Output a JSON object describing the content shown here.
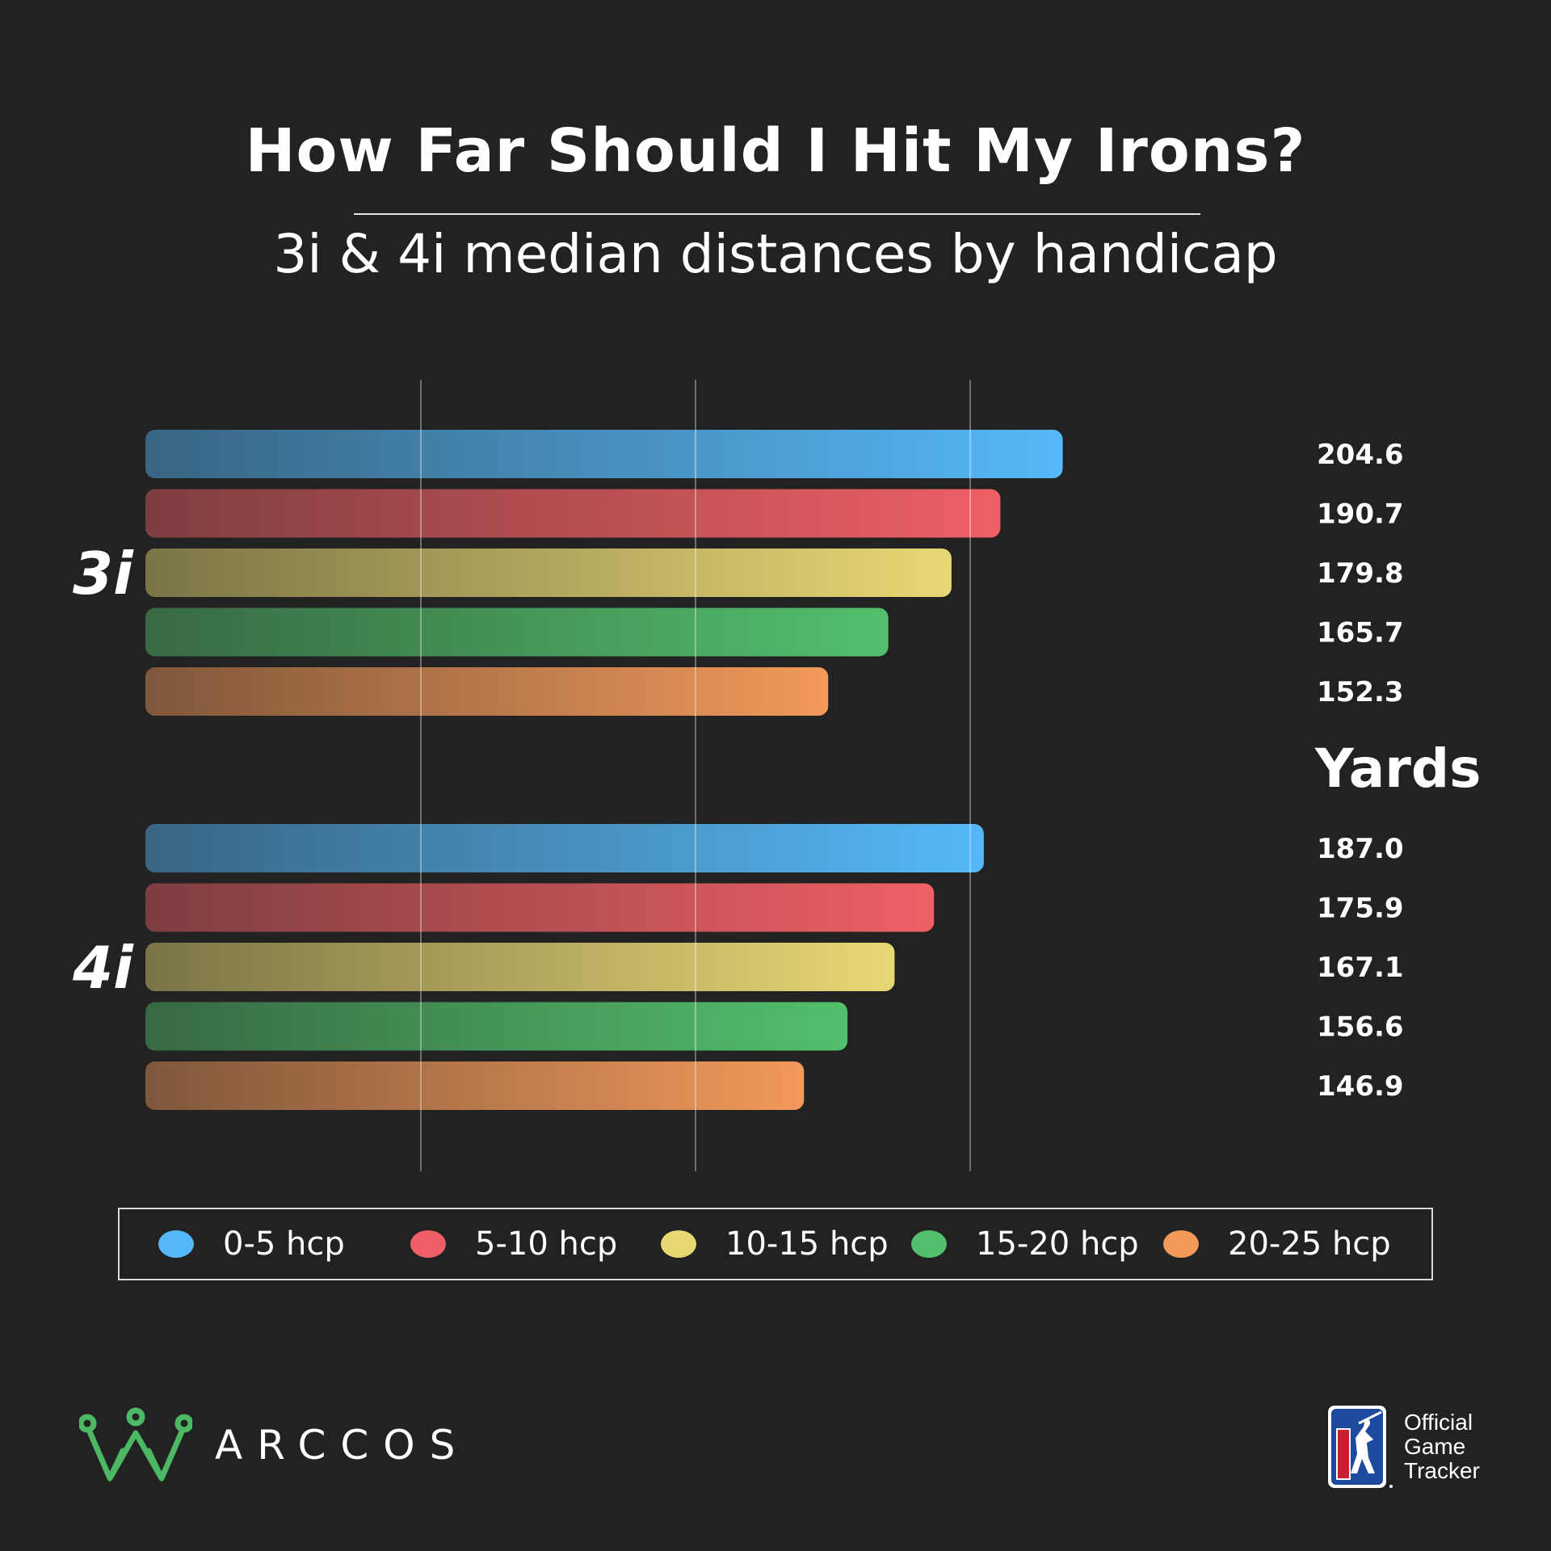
{
  "header": {
    "title": "How Far Should I Hit My Irons?",
    "subtitle": "3i & 4i median distances by handicap"
  },
  "chart_data": {
    "type": "bar",
    "orientation": "horizontal",
    "title": "How Far Should I Hit My Irons?",
    "subtitle": "3i & 4i median distances by handicap",
    "unit_label": "Yards",
    "groups": [
      "3i",
      "4i"
    ],
    "series": [
      {
        "name": "0-5 hcp",
        "color": "#55b8f8",
        "values": [
          204.6,
          187.0
        ]
      },
      {
        "name": "5-10 hcp",
        "color": "#ee6065",
        "values": [
          190.7,
          175.9
        ]
      },
      {
        "name": "10-15 hcp",
        "color": "#e8d874",
        "values": [
          179.8,
          167.1
        ]
      },
      {
        "name": "15-20 hcp",
        "color": "#52c06c",
        "values": [
          165.7,
          156.6
        ]
      },
      {
        "name": "20-25 hcp",
        "color": "#f2995a",
        "values": [
          152.3,
          146.9
        ]
      }
    ],
    "value_labels": [
      [
        "204.6",
        "190.7",
        "179.8",
        "165.7",
        "152.3"
      ],
      [
        "187.0",
        "175.9",
        "167.1",
        "156.6",
        "146.9"
      ]
    ],
    "grid": true,
    "legend_position": "bottom"
  },
  "legend": [
    {
      "label": "0-5 hcp",
      "color": "#55b8f8"
    },
    {
      "label": "5-10 hcp",
      "color": "#ee6065"
    },
    {
      "label": "10-15 hcp",
      "color": "#e8d874"
    },
    {
      "label": "15-20 hcp",
      "color": "#52c06c"
    },
    {
      "label": "20-25 hcp",
      "color": "#f2995a"
    }
  ],
  "brand": {
    "name": "ARCCOS",
    "color": "#4cb863"
  },
  "partner": {
    "logo_text": "PGA TOUR",
    "lines": [
      "Official",
      "Game",
      "Tracker"
    ]
  }
}
